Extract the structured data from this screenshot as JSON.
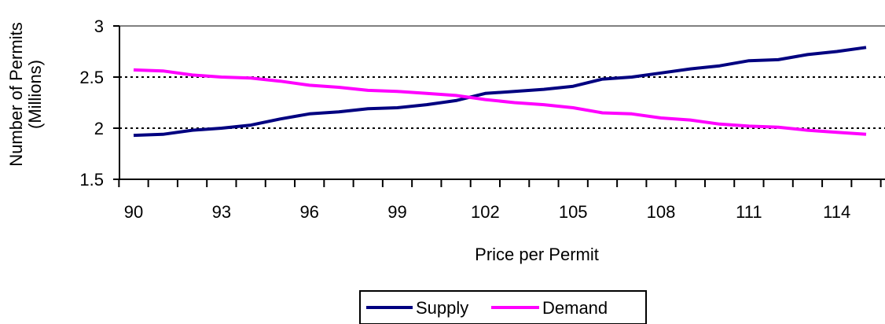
{
  "chart_data": {
    "type": "line",
    "title": "",
    "xlabel": "Price per Permit",
    "ylabel_lines": [
      "Number of Permits",
      "(Millions)"
    ],
    "x": [
      90,
      91,
      92,
      93,
      94,
      95,
      96,
      97,
      98,
      99,
      100,
      101,
      102,
      103,
      104,
      105,
      106,
      107,
      108,
      109,
      110,
      111,
      112,
      113,
      114,
      115
    ],
    "x_tick_labels": [
      "90",
      "93",
      "96",
      "99",
      "102",
      "105",
      "108",
      "111",
      "114"
    ],
    "x_tick_values": [
      90,
      93,
      96,
      99,
      102,
      105,
      108,
      111,
      114
    ],
    "ylim": [
      1.5,
      3
    ],
    "y_ticks": [
      1.5,
      2,
      2.5,
      3
    ],
    "y_tick_labels": [
      "1.5",
      "2",
      "2.5",
      "3"
    ],
    "grid": "horizontal dotted at 2, 2.5, 3",
    "legend": "bottom-center",
    "series": [
      {
        "name": "Supply",
        "color": "#000080",
        "values": [
          1.93,
          1.94,
          1.98,
          2.0,
          2.03,
          2.09,
          2.14,
          2.16,
          2.19,
          2.2,
          2.23,
          2.27,
          2.34,
          2.36,
          2.38,
          2.41,
          2.48,
          2.5,
          2.54,
          2.58,
          2.61,
          2.66,
          2.67,
          2.72,
          2.75,
          2.79
        ]
      },
      {
        "name": "Demand",
        "color": "#FF00FF",
        "values": [
          2.57,
          2.56,
          2.52,
          2.5,
          2.49,
          2.46,
          2.42,
          2.4,
          2.37,
          2.36,
          2.34,
          2.32,
          2.28,
          2.25,
          2.23,
          2.2,
          2.15,
          2.14,
          2.1,
          2.08,
          2.04,
          2.02,
          2.01,
          1.98,
          1.96,
          1.94
        ]
      }
    ]
  }
}
